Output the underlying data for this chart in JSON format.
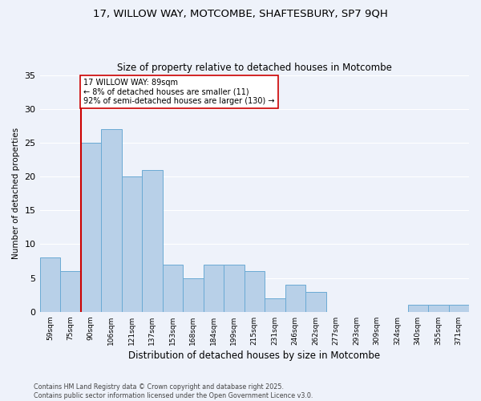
{
  "title_line1": "17, WILLOW WAY, MOTCOMBE, SHAFTESBURY, SP7 9QH",
  "title_line2": "Size of property relative to detached houses in Motcombe",
  "xlabel": "Distribution of detached houses by size in Motcombe",
  "ylabel": "Number of detached properties",
  "annotation_line1": "17 WILLOW WAY: 89sqm",
  "annotation_line2": "← 8% of detached houses are smaller (11)",
  "annotation_line3": "92% of semi-detached houses are larger (130) →",
  "footer_line1": "Contains HM Land Registry data © Crown copyright and database right 2025.",
  "footer_line2": "Contains public sector information licensed under the Open Government Licence v3.0.",
  "bar_color": "#b8d0e8",
  "bar_edge_color": "#6aaad4",
  "marker_line_color": "#cc0000",
  "annotation_box_edge_color": "#cc0000",
  "background_color": "#eef2fa",
  "grid_color": "#ffffff",
  "categories": [
    "59sqm",
    "75sqm",
    "90sqm",
    "106sqm",
    "121sqm",
    "137sqm",
    "153sqm",
    "168sqm",
    "184sqm",
    "199sqm",
    "215sqm",
    "231sqm",
    "246sqm",
    "262sqm",
    "277sqm",
    "293sqm",
    "309sqm",
    "324sqm",
    "340sqm",
    "355sqm",
    "371sqm"
  ],
  "values": [
    8,
    6,
    25,
    27,
    20,
    21,
    7,
    5,
    7,
    7,
    6,
    2,
    4,
    3,
    0,
    0,
    0,
    0,
    1,
    1,
    1
  ],
  "marker_index": 2,
  "ylim": [
    0,
    35
  ],
  "yticks": [
    0,
    5,
    10,
    15,
    20,
    25,
    30,
    35
  ]
}
